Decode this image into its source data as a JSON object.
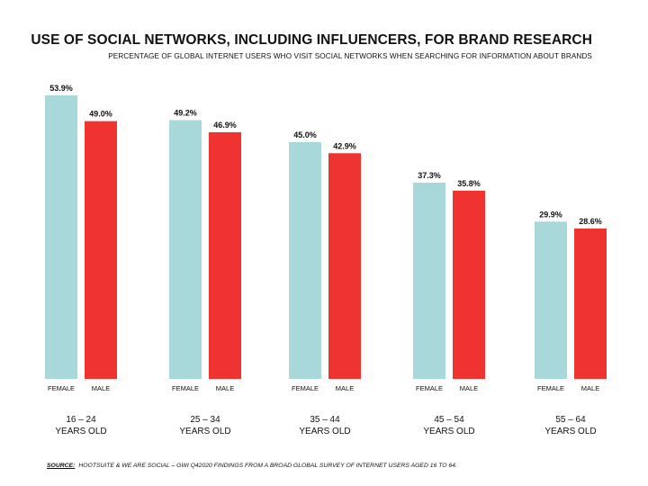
{
  "title": "USE OF SOCIAL NETWORKS, INCLUDING INFLUENCERS, FOR BRAND RESEARCH",
  "subtitle": "PERCENTAGE OF GLOBAL INTERNET USERS WHO VISIT SOCIAL NETWORKS WHEN SEARCHING FOR INFORMATION ABOUT BRANDS",
  "source": {
    "label": "SOURCE:",
    "text": "HOOTSUITE & WE ARE SOCIAL – GWI Q42020 FINDINGS FROM A BROAD GLOBAL SURVEY OF INTERNET USERS AGED 16 TO 64."
  },
  "colors": {
    "female": "#a8d8da",
    "male": "#ef3330"
  },
  "chart_data": {
    "type": "bar",
    "categories": [
      {
        "line1": "16 – 24",
        "line2": "YEARS OLD"
      },
      {
        "line1": "25 – 34",
        "line2": "YEARS OLD"
      },
      {
        "line1": "35 – 44",
        "line2": "YEARS OLD"
      },
      {
        "line1": "45 – 54",
        "line2": "YEARS OLD"
      },
      {
        "line1": "55 – 64",
        "line2": "YEARS OLD"
      }
    ],
    "series": [
      {
        "name": "FEMALE",
        "values": [
          53.9,
          49.2,
          45.0,
          37.3,
          29.9
        ],
        "labels": [
          "53.9%",
          "49.2%",
          "45.0%",
          "37.3%",
          "29.9%"
        ]
      },
      {
        "name": "MALE",
        "values": [
          49.0,
          46.9,
          42.9,
          35.8,
          28.6
        ],
        "labels": [
          "49.0%",
          "46.9%",
          "42.9%",
          "35.8%",
          "28.6%"
        ]
      }
    ],
    "ylim": [
      0,
      53.9
    ],
    "grid": false,
    "legend": "below each bar"
  }
}
